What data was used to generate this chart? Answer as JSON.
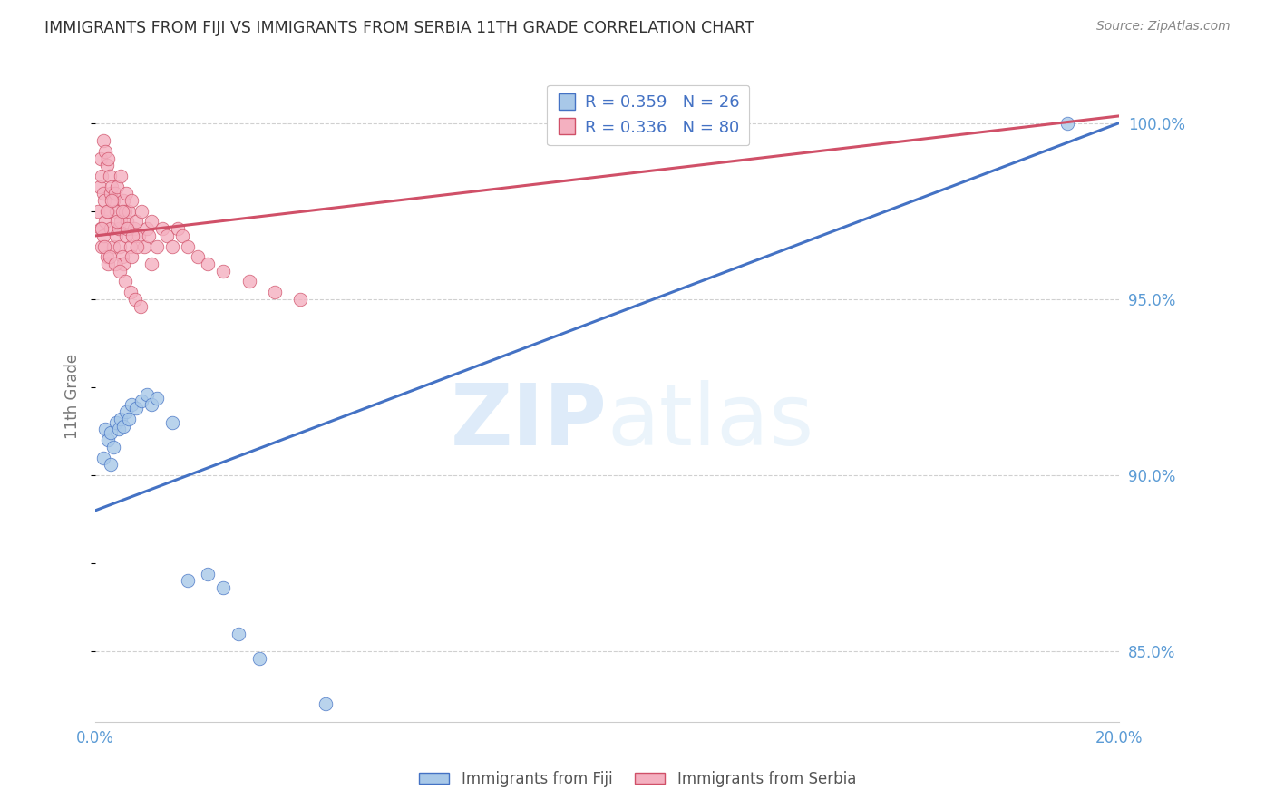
{
  "title": "IMMIGRANTS FROM FIJI VS IMMIGRANTS FROM SERBIA 11TH GRADE CORRELATION CHART",
  "source": "Source: ZipAtlas.com",
  "ylabel": "11th Grade",
  "xlim": [
    0.0,
    20.0
  ],
  "ylim": [
    83.0,
    101.5
  ],
  "xtick_positions": [
    0.0,
    4.0,
    8.0,
    12.0,
    16.0,
    20.0
  ],
  "xtick_labels": [
    "0.0%",
    "",
    "",
    "",
    "",
    "20.0%"
  ],
  "ytick_labels_right": [
    "85.0%",
    "90.0%",
    "95.0%",
    "100.0%"
  ],
  "yticks_right": [
    85.0,
    90.0,
    95.0,
    100.0
  ],
  "fiji_color": "#a8c8e8",
  "serbia_color": "#f4b0c0",
  "fiji_line_color": "#4472c4",
  "serbia_line_color": "#d05068",
  "fiji_R": 0.359,
  "fiji_N": 26,
  "serbia_R": 0.336,
  "serbia_N": 80,
  "legend_fiji_label": "Immigrants from Fiji",
  "legend_serbia_label": "Immigrants from Serbia",
  "watermark_zip": "ZIP",
  "watermark_atlas": "atlas",
  "blue_line_x0": 0.0,
  "blue_line_y0": 89.0,
  "blue_line_x1": 20.0,
  "blue_line_y1": 100.0,
  "pink_line_x0": 0.0,
  "pink_line_y0": 96.8,
  "pink_line_x1": 20.0,
  "pink_line_y1": 100.2,
  "fiji_x": [
    0.15,
    0.2,
    0.25,
    0.3,
    0.35,
    0.4,
    0.45,
    0.5,
    0.55,
    0.6,
    0.65,
    0.7,
    0.8,
    0.9,
    1.0,
    1.1,
    1.2,
    1.5,
    1.8,
    2.2,
    2.5,
    2.8,
    3.2,
    4.5,
    19.0,
    0.3
  ],
  "fiji_y": [
    90.5,
    91.3,
    91.0,
    91.2,
    90.8,
    91.5,
    91.3,
    91.6,
    91.4,
    91.8,
    91.6,
    92.0,
    91.9,
    92.1,
    92.3,
    92.0,
    92.2,
    91.5,
    87.0,
    87.2,
    86.8,
    85.5,
    84.8,
    83.5,
    100.0,
    90.3
  ],
  "serbia_x": [
    0.05,
    0.08,
    0.1,
    0.1,
    0.12,
    0.12,
    0.15,
    0.15,
    0.15,
    0.18,
    0.2,
    0.2,
    0.22,
    0.22,
    0.25,
    0.25,
    0.25,
    0.28,
    0.3,
    0.3,
    0.32,
    0.35,
    0.35,
    0.38,
    0.4,
    0.4,
    0.42,
    0.45,
    0.48,
    0.5,
    0.5,
    0.52,
    0.55,
    0.55,
    0.58,
    0.6,
    0.6,
    0.62,
    0.65,
    0.68,
    0.7,
    0.7,
    0.75,
    0.8,
    0.85,
    0.9,
    0.95,
    1.0,
    1.05,
    1.1,
    1.2,
    1.3,
    1.4,
    1.5,
    1.6,
    1.7,
    1.8,
    2.0,
    2.2,
    2.5,
    3.0,
    3.5,
    4.0,
    0.12,
    0.18,
    0.22,
    0.28,
    0.32,
    0.38,
    0.42,
    0.48,
    0.52,
    0.58,
    0.62,
    0.68,
    0.72,
    0.78,
    0.82,
    0.88,
    1.1
  ],
  "serbia_y": [
    97.5,
    98.2,
    99.0,
    97.0,
    98.5,
    96.5,
    99.5,
    98.0,
    96.8,
    97.8,
    99.2,
    97.2,
    98.8,
    96.2,
    99.0,
    97.5,
    96.0,
    98.5,
    98.0,
    97.0,
    98.2,
    97.8,
    96.5,
    98.0,
    97.5,
    96.8,
    98.2,
    97.0,
    96.5,
    98.5,
    97.2,
    96.2,
    97.8,
    96.0,
    97.5,
    98.0,
    96.8,
    97.2,
    97.5,
    96.5,
    97.8,
    96.2,
    97.0,
    97.2,
    96.8,
    97.5,
    96.5,
    97.0,
    96.8,
    97.2,
    96.5,
    97.0,
    96.8,
    96.5,
    97.0,
    96.8,
    96.5,
    96.2,
    96.0,
    95.8,
    95.5,
    95.2,
    95.0,
    97.0,
    96.5,
    97.5,
    96.2,
    97.8,
    96.0,
    97.2,
    95.8,
    97.5,
    95.5,
    97.0,
    95.2,
    96.8,
    95.0,
    96.5,
    94.8,
    96.0
  ]
}
